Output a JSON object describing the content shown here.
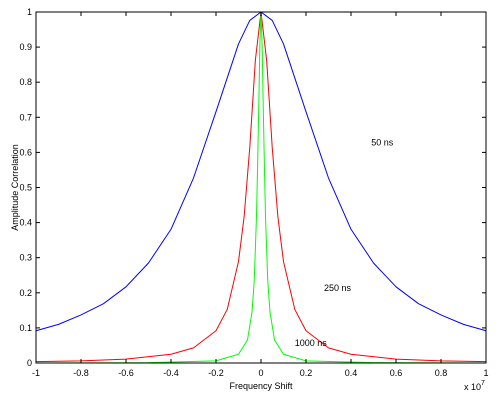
{
  "chart_data": {
    "type": "line",
    "xlabel": "Frequency Shift",
    "ylabel": "Amplitude Correlation",
    "x_exponent_base": "x 10",
    "x_exponent_power": "7",
    "xlim": [
      -1,
      1
    ],
    "ylim": [
      0,
      1
    ],
    "xticks": [
      -1,
      -0.8,
      -0.6,
      -0.4,
      -0.2,
      0,
      0.2,
      0.4,
      0.6,
      0.8,
      1
    ],
    "xtick_labels": [
      "-1",
      "-0.8",
      "-0.6",
      "-0.4",
      "-0.2",
      "0",
      "0.2",
      "0.4",
      "0.6",
      "0.8",
      "1"
    ],
    "yticks": [
      0,
      0.1,
      0.2,
      0.3,
      0.4,
      0.5,
      0.6,
      0.7,
      0.8,
      0.9,
      1
    ],
    "ytick_labels": [
      "0",
      "0.1",
      "0.2",
      "0.3",
      "0.4",
      "0.5",
      "0.6",
      "0.7",
      "0.8",
      "0.9",
      "1"
    ],
    "grid": false,
    "series": [
      {
        "name": "50 ns",
        "color": "#0000ff",
        "x": [
          -1,
          -0.9,
          -0.8,
          -0.7,
          -0.6,
          -0.5,
          -0.4,
          -0.3,
          -0.2,
          -0.1,
          -0.05,
          0,
          0.05,
          0.1,
          0.2,
          0.3,
          0.4,
          0.5,
          0.6,
          0.7,
          0.8,
          0.9,
          1
        ],
        "y": [
          0.092,
          0.11,
          0.137,
          0.169,
          0.217,
          0.285,
          0.381,
          0.527,
          0.716,
          0.909,
          0.976,
          1.0,
          0.976,
          0.909,
          0.716,
          0.527,
          0.381,
          0.285,
          0.217,
          0.169,
          0.137,
          0.11,
          0.092
        ]
      },
      {
        "name": "250 ns",
        "color": "#ff0000",
        "x": [
          -1,
          -0.8,
          -0.6,
          -0.4,
          -0.3,
          -0.2,
          -0.15,
          -0.1,
          -0.075,
          -0.05,
          -0.025,
          0,
          0.025,
          0.05,
          0.075,
          0.1,
          0.15,
          0.2,
          0.3,
          0.4,
          0.6,
          0.8,
          1
        ],
        "y": [
          0.004,
          0.006,
          0.011,
          0.025,
          0.043,
          0.092,
          0.153,
          0.289,
          0.417,
          0.613,
          0.863,
          1.0,
          0.863,
          0.613,
          0.417,
          0.289,
          0.153,
          0.092,
          0.043,
          0.025,
          0.011,
          0.006,
          0.004
        ],
        "label_x": 0.28,
        "label_y": 0.205
      },
      {
        "name": "1000 ns",
        "color": "#00ff00",
        "x": [
          -1,
          -0.5,
          -0.2,
          -0.1,
          -0.06,
          -0.04,
          -0.03,
          -0.02,
          -0.015,
          -0.01,
          -0.005,
          0,
          0.005,
          0.01,
          0.015,
          0.02,
          0.03,
          0.04,
          0.06,
          0.1,
          0.2,
          0.5,
          1
        ],
        "y": [
          0.0,
          0.001,
          0.006,
          0.025,
          0.066,
          0.145,
          0.235,
          0.418,
          0.565,
          0.728,
          0.908,
          1.0,
          0.908,
          0.728,
          0.565,
          0.418,
          0.235,
          0.145,
          0.066,
          0.025,
          0.006,
          0.001,
          0.0
        ],
        "label_x": 0.15,
        "label_y": 0.048
      }
    ],
    "annotation_blue": {
      "text": "50 ns",
      "x": 0.49,
      "y": 0.62
    }
  }
}
